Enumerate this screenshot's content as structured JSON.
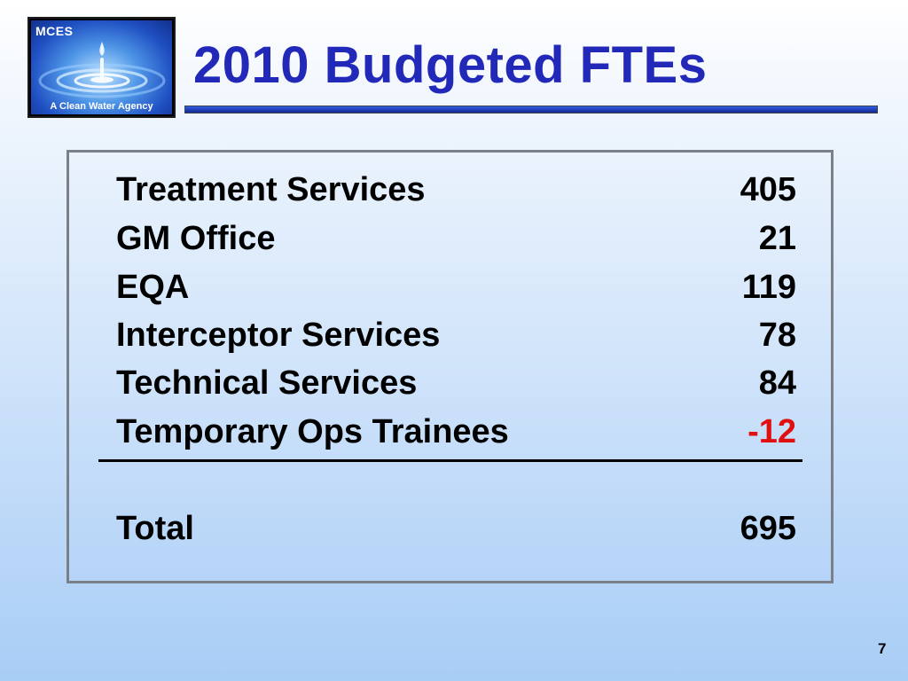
{
  "logo": {
    "abbr": "MCES",
    "tagline": "A Clean Water Agency"
  },
  "slide": {
    "title": "2010 Budgeted FTEs",
    "page_number": "7",
    "accent_color": "#2229b8",
    "negative_color": "#e01010"
  },
  "table": {
    "rows": [
      {
        "label": "Treatment Services",
        "value": "405"
      },
      {
        "label": "GM Office",
        "value": "21"
      },
      {
        "label": "EQA",
        "value": "119"
      },
      {
        "label": "Interceptor Services",
        "value": "78"
      },
      {
        "label": "Technical Services",
        "value": "84"
      },
      {
        "label": "Temporary Ops Trainees",
        "value": "-12"
      }
    ],
    "total": {
      "label": "Total",
      "value": "695"
    }
  }
}
